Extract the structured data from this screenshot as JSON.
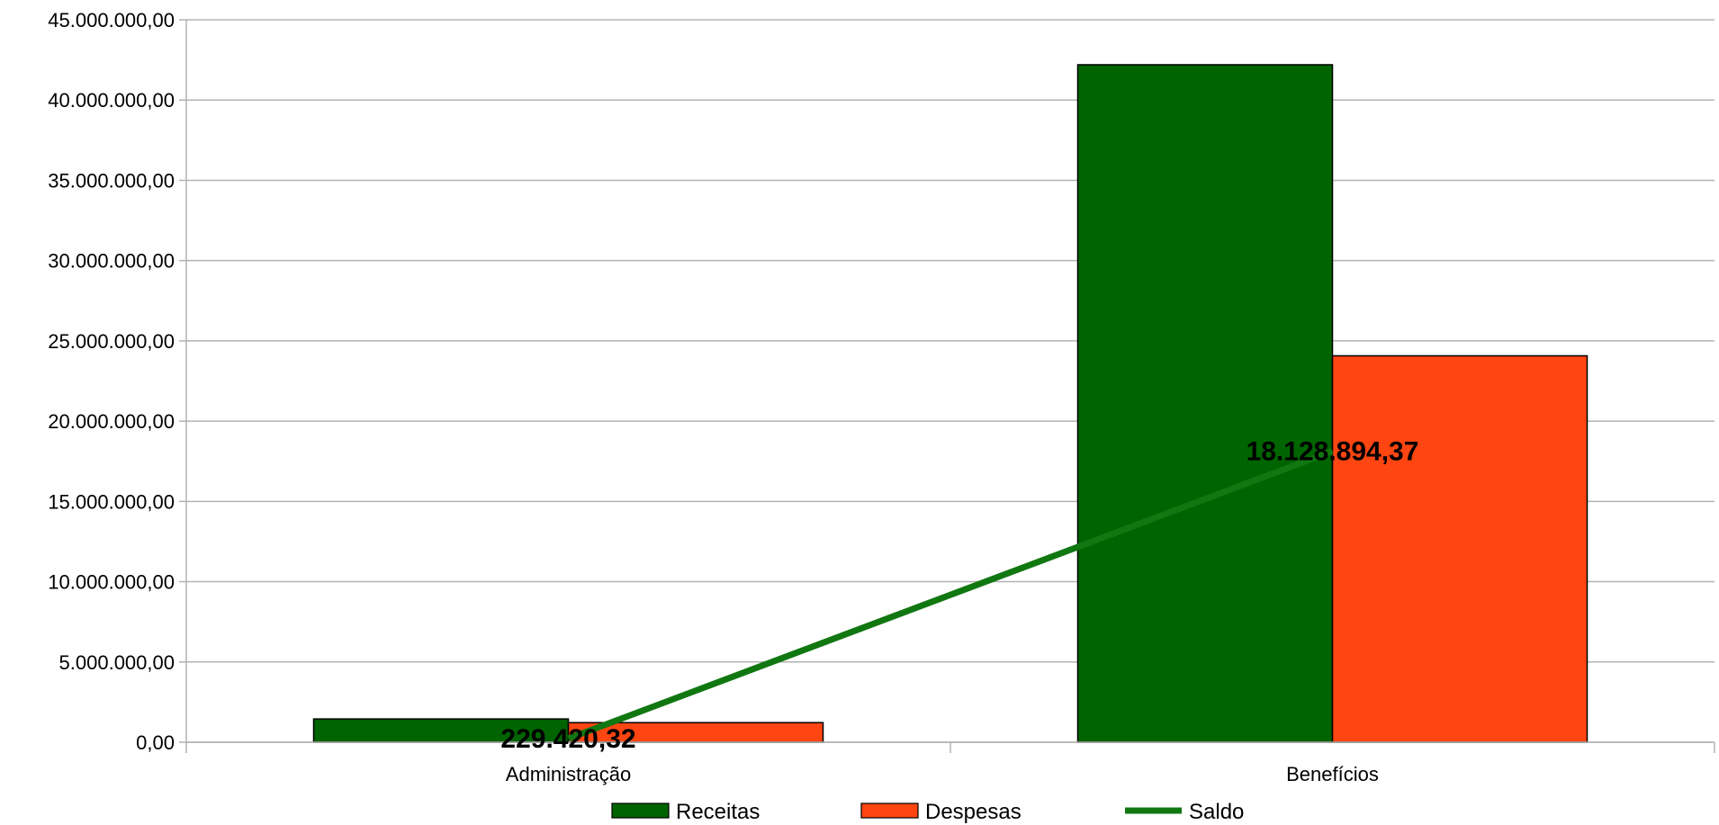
{
  "chart_data": {
    "type": "bar",
    "categories": [
      "Administração",
      "Benefícios"
    ],
    "series": [
      {
        "name": "Receitas",
        "kind": "bar",
        "values": [
          1450000,
          42200000
        ],
        "color": "#006400"
      },
      {
        "name": "Despesas",
        "kind": "bar",
        "values": [
          1220000,
          24070000
        ],
        "color": "#ff4512"
      },
      {
        "name": "Saldo",
        "kind": "line",
        "values": [
          229420.32,
          18128894.37
        ],
        "color": "#117711"
      }
    ],
    "data_labels": [
      "229.420,32",
      "18.128.894,37"
    ],
    "y_ticks": [
      "0,00",
      "5.000.000,00",
      "10.000.000,00",
      "15.000.000,00",
      "20.000.000,00",
      "25.000.000,00",
      "30.000.000,00",
      "35.000.000,00",
      "40.000.000,00",
      "45.000.000,00"
    ],
    "ylim": [
      0,
      45000000
    ],
    "ystep": 5000000,
    "grid": true,
    "legend_position": "bottom",
    "title": "",
    "xlabel": "",
    "ylabel": ""
  }
}
